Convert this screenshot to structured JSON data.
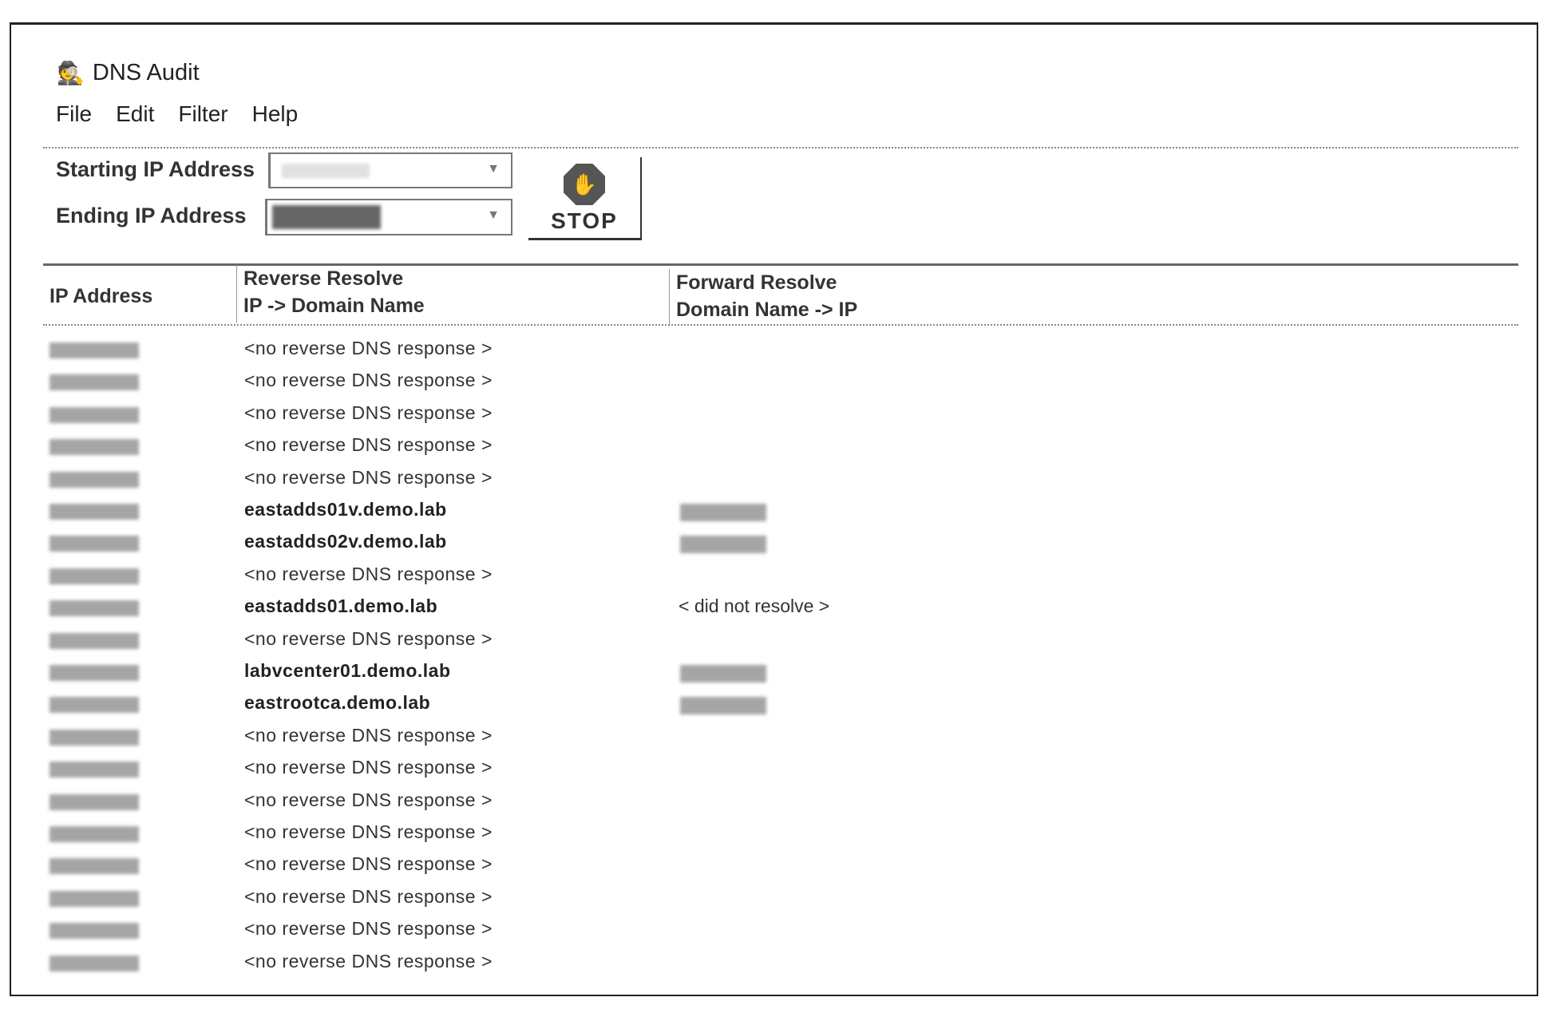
{
  "window": {
    "title": "DNS Audit",
    "icon": "spy-icon"
  },
  "menu": [
    "File",
    "Edit",
    "Filter",
    "Help"
  ],
  "form": {
    "start_label": "Starting IP Address",
    "end_label": "Ending IP Address",
    "stop_label": "STOP",
    "stop_icon": "stop-hand-icon"
  },
  "table": {
    "headers": [
      {
        "line1": "IP Address",
        "line2": ""
      },
      {
        "line1": "Reverse Resolve",
        "line2": "IP -> Domain Name"
      },
      {
        "line1": "Forward Resolve",
        "line2": "Domain Name -> IP"
      }
    ],
    "rows": [
      {
        "reverse": "<no reverse DNS response >",
        "resolved": false,
        "forward": ""
      },
      {
        "reverse": "<no reverse DNS response >",
        "resolved": false,
        "forward": ""
      },
      {
        "reverse": "<no reverse DNS response >",
        "resolved": false,
        "forward": ""
      },
      {
        "reverse": "<no reverse DNS response >",
        "resolved": false,
        "forward": ""
      },
      {
        "reverse": "<no reverse DNS response >",
        "resolved": false,
        "forward": ""
      },
      {
        "reverse": "eastadds01v.demo.lab",
        "resolved": true,
        "forward": "",
        "forward_redacted": true
      },
      {
        "reverse": "eastadds02v.demo.lab",
        "resolved": true,
        "forward": "",
        "forward_redacted": true
      },
      {
        "reverse": "<no reverse DNS response >",
        "resolved": false,
        "forward": ""
      },
      {
        "reverse": "eastadds01.demo.lab",
        "resolved": true,
        "forward": "< did not resolve >"
      },
      {
        "reverse": "<no reverse DNS response >",
        "resolved": false,
        "forward": ""
      },
      {
        "reverse": "labvcenter01.demo.lab",
        "resolved": true,
        "forward": "",
        "forward_redacted": true
      },
      {
        "reverse": "eastrootca.demo.lab",
        "resolved": true,
        "forward": "",
        "forward_redacted": true
      },
      {
        "reverse": "<no reverse DNS response >",
        "resolved": false,
        "forward": ""
      },
      {
        "reverse": "<no reverse DNS response >",
        "resolved": false,
        "forward": ""
      },
      {
        "reverse": "<no reverse DNS response >",
        "resolved": false,
        "forward": ""
      },
      {
        "reverse": "<no reverse DNS response >",
        "resolved": false,
        "forward": ""
      },
      {
        "reverse": "<no reverse DNS response >",
        "resolved": false,
        "forward": ""
      },
      {
        "reverse": "<no reverse DNS response >",
        "resolved": false,
        "forward": ""
      },
      {
        "reverse": "<no reverse DNS response >",
        "resolved": false,
        "forward": ""
      },
      {
        "reverse": "<no reverse DNS response >",
        "resolved": false,
        "forward": ""
      }
    ]
  }
}
